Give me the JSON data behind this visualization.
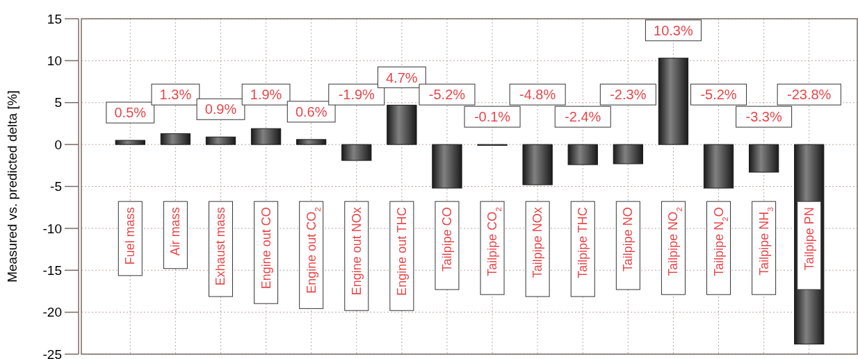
{
  "chart_data": {
    "type": "bar",
    "ylabel": "Measured vs. predicted delta [%]",
    "categories": [
      "Fuel mass",
      "Air mass",
      "Exhaust mass",
      "Engine out CO",
      "Engine out CO$_{2}$",
      "Engine out NOx",
      "Engine out THC",
      "Tailpipe CO",
      "Tailpipe CO$_{2}$",
      "Tailpipe NOx",
      "Tailpipe THC",
      "Tailpipe NO",
      "Tailpipe NO$_{2}$",
      "Tailpipe N$_{2}$O",
      "Tailpipe NH$_{3}$",
      "Tailpipe PN"
    ],
    "values": [
      0.5,
      1.3,
      0.9,
      1.9,
      0.6,
      -1.9,
      4.7,
      -5.2,
      -0.1,
      -4.8,
      -2.4,
      -2.3,
      10.3,
      -5.2,
      -3.3,
      -23.8
    ],
    "value_labels": [
      "0.5%",
      "1.3%",
      "0.9%",
      "1.9%",
      "0.6%",
      "-1.9%",
      "4.7%",
      "-5.2%",
      "-0.1%",
      "-4.8%",
      "-2.4%",
      "-2.3%",
      "10.3%",
      "-5.2%",
      "-3.3%",
      "-23.8%"
    ],
    "color": "#1a1a1a",
    "ylim": [
      -25,
      15
    ],
    "yticks": [
      -25,
      -20,
      -15,
      -10,
      -5,
      0,
      5,
      10,
      15
    ],
    "grid": true
  }
}
